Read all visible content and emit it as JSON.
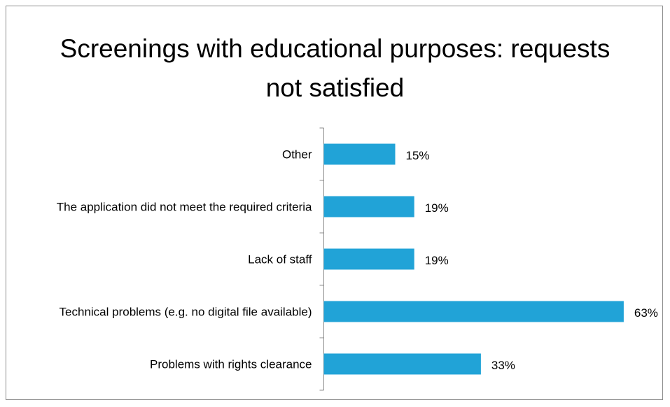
{
  "chart_data": {
    "type": "bar",
    "orientation": "horizontal",
    "title": "Screenings with educational purposes: requests not satisfied",
    "categories": [
      "Other",
      "The application did not meet the required criteria",
      "Lack of staff",
      "Technical problems (e.g. no digital file available)",
      "Problems with rights clearance"
    ],
    "values": [
      15,
      19,
      19,
      63,
      33
    ],
    "value_labels": [
      "15%",
      "19%",
      "19%",
      "63%",
      "33%"
    ],
    "color": "#21a3d7"
  }
}
